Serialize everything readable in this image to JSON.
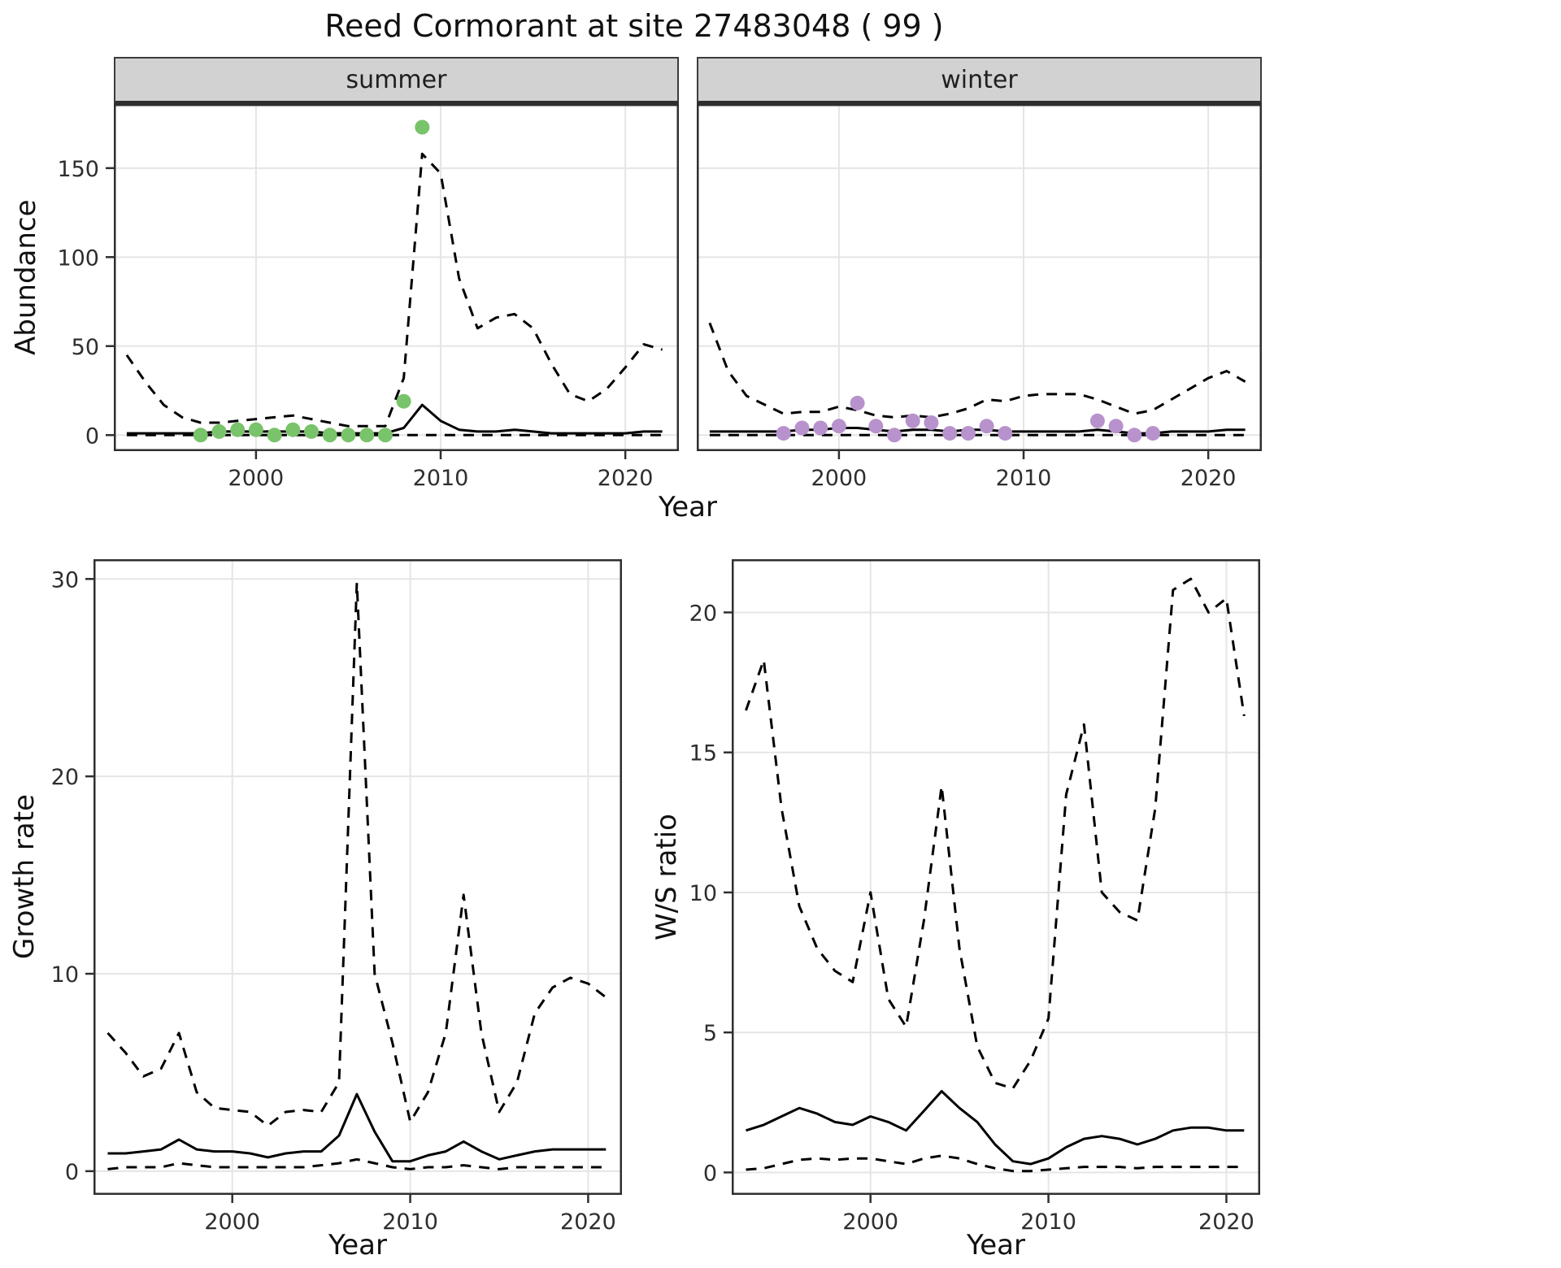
{
  "title": "Reed Cormorant at site 27483048 ( 99 )",
  "colors": {
    "summer_points": "#79c36a",
    "winter_points": "#b892cc",
    "line": "#000000",
    "grid": "#e5e5e5",
    "strip_bg": "#d2d2d2"
  },
  "chart_data": [
    {
      "type": "line",
      "facet_label": "summer",
      "xlabel": "Year",
      "ylabel": "Abundance",
      "xlim": [
        1992.3,
        2022.9
      ],
      "ylim": [
        -9,
        186
      ],
      "xticks": [
        2000,
        2010,
        2020
      ],
      "yticks": [
        0,
        50,
        100,
        150
      ],
      "x": [
        1993,
        1994,
        1995,
        1996,
        1997,
        1998,
        1999,
        2000,
        2001,
        2002,
        2003,
        2004,
        2005,
        2006,
        2007,
        2008,
        2009,
        2010,
        2011,
        2012,
        2013,
        2014,
        2015,
        2016,
        2017,
        2018,
        2019,
        2020,
        2021,
        2022
      ],
      "series": [
        {
          "name": "median",
          "style": "solid",
          "values": [
            1,
            1,
            1,
            1,
            1,
            2,
            2,
            2,
            2,
            2,
            2,
            1,
            1,
            1,
            1,
            4,
            17,
            8,
            3,
            2,
            2,
            3,
            2,
            1,
            1,
            1,
            1,
            1,
            2,
            2
          ]
        },
        {
          "name": "upper_ci",
          "style": "dashed",
          "values": [
            45,
            30,
            17,
            10,
            7,
            7,
            8,
            9,
            10,
            11,
            9,
            7,
            5,
            5,
            5,
            32,
            158,
            147,
            88,
            60,
            66,
            68,
            60,
            40,
            23,
            19,
            26,
            38,
            51,
            48
          ]
        },
        {
          "name": "lower_ci",
          "style": "dashed",
          "values": [
            0,
            0,
            0,
            0,
            0,
            0,
            0,
            0,
            0,
            0,
            0,
            0,
            0,
            0,
            0,
            0,
            0,
            0,
            0,
            0,
            0,
            0,
            0,
            0,
            0,
            0,
            0,
            0,
            0,
            0
          ]
        }
      ],
      "points": {
        "name": "observed-counts-summer",
        "color": "#79c36a",
        "x": [
          1997,
          1998,
          1999,
          2000,
          2001,
          2002,
          2003,
          2004,
          2005,
          2006,
          2007,
          2008,
          2009
        ],
        "y": [
          0,
          2,
          3,
          3,
          0,
          3,
          2,
          0,
          0,
          0,
          0,
          19,
          173
        ]
      }
    },
    {
      "type": "line",
      "facet_label": "winter",
      "xlabel": "Year",
      "ylabel": "Abundance",
      "xlim": [
        1992.3,
        2022.9
      ],
      "ylim": [
        -9,
        186
      ],
      "xticks": [
        2000,
        2010,
        2020
      ],
      "yticks": [
        0,
        50,
        100,
        150
      ],
      "x": [
        1993,
        1994,
        1995,
        1996,
        1997,
        1998,
        1999,
        2000,
        2001,
        2002,
        2003,
        2004,
        2005,
        2006,
        2007,
        2008,
        2009,
        2010,
        2011,
        2012,
        2013,
        2014,
        2015,
        2016,
        2017,
        2018,
        2019,
        2020,
        2021,
        2022
      ],
      "series": [
        {
          "name": "median",
          "style": "solid",
          "values": [
            2,
            2,
            2,
            2,
            2,
            3,
            3,
            4,
            4,
            3,
            2,
            3,
            3,
            2,
            3,
            3,
            2,
            2,
            2,
            2,
            2,
            3,
            2,
            1,
            1,
            2,
            2,
            2,
            3,
            3
          ]
        },
        {
          "name": "upper_ci",
          "style": "dashed",
          "values": [
            63,
            36,
            22,
            17,
            12,
            13,
            13,
            16,
            14,
            11,
            10,
            11,
            10,
            12,
            15,
            20,
            19,
            22,
            23,
            23,
            23,
            20,
            16,
            12,
            14,
            20,
            26,
            32,
            36,
            30
          ]
        },
        {
          "name": "lower_ci",
          "style": "dashed",
          "values": [
            0,
            0,
            0,
            0,
            0,
            0,
            0,
            0,
            0,
            0,
            0,
            0,
            0,
            0,
            0,
            0,
            0,
            0,
            0,
            0,
            0,
            0,
            0,
            0,
            0,
            0,
            0,
            0,
            0,
            0
          ]
        }
      ],
      "points": {
        "name": "observed-counts-winter",
        "color": "#b892cc",
        "x": [
          1997,
          1998,
          1999,
          2000,
          2001,
          2002,
          2003,
          2004,
          2005,
          2006,
          2007,
          2008,
          2009,
          2014,
          2015,
          2016,
          2017
        ],
        "y": [
          1,
          4,
          4,
          5,
          18,
          5,
          0,
          8,
          7,
          1,
          1,
          5,
          1,
          8,
          5,
          0,
          1
        ]
      }
    },
    {
      "type": "line",
      "facet_label": null,
      "xlabel": "Year",
      "ylabel": "Growth rate",
      "xlim": [
        1992.2,
        2021.9
      ],
      "ylim": [
        -1.2,
        31
      ],
      "xticks": [
        2000,
        2010,
        2020
      ],
      "yticks": [
        0,
        10,
        20,
        30
      ],
      "x": [
        1993,
        1994,
        1995,
        1996,
        1997,
        1998,
        1999,
        2000,
        2001,
        2002,
        2003,
        2004,
        2005,
        2006,
        2007,
        2008,
        2009,
        2010,
        2011,
        2012,
        2013,
        2014,
        2015,
        2016,
        2017,
        2018,
        2019,
        2020,
        2021
      ],
      "series": [
        {
          "name": "median",
          "style": "solid",
          "values": [
            0.9,
            0.9,
            1.0,
            1.1,
            1.6,
            1.1,
            1.0,
            1.0,
            0.9,
            0.7,
            0.9,
            1.0,
            1.0,
            1.8,
            3.9,
            2.0,
            0.5,
            0.5,
            0.8,
            1.0,
            1.5,
            1.0,
            0.6,
            0.8,
            1.0,
            1.1,
            1.1,
            1.1,
            1.1
          ]
        },
        {
          "name": "upper_ci",
          "style": "dashed",
          "values": [
            7.0,
            6.0,
            4.8,
            5.2,
            7.0,
            4.0,
            3.2,
            3.1,
            3.0,
            2.3,
            3.0,
            3.1,
            3.0,
            4.5,
            29.8,
            10.0,
            6.5,
            2.5,
            4.0,
            7.0,
            14.0,
            7.0,
            3.0,
            4.5,
            8.0,
            9.3,
            9.8,
            9.5,
            8.8
          ]
        },
        {
          "name": "lower_ci",
          "style": "dashed",
          "values": [
            0.1,
            0.2,
            0.2,
            0.2,
            0.4,
            0.3,
            0.2,
            0.2,
            0.2,
            0.2,
            0.2,
            0.2,
            0.3,
            0.4,
            0.6,
            0.4,
            0.2,
            0.1,
            0.2,
            0.2,
            0.3,
            0.2,
            0.1,
            0.2,
            0.2,
            0.2,
            0.2,
            0.2,
            0.2
          ]
        }
      ]
    },
    {
      "type": "line",
      "facet_label": null,
      "xlabel": "Year",
      "ylabel": "W/S ratio",
      "xlim": [
        1992.2,
        2021.9
      ],
      "ylim": [
        -0.8,
        21.9
      ],
      "xticks": [
        2000,
        2010,
        2020
      ],
      "yticks": [
        0,
        5,
        10,
        15,
        20
      ],
      "x": [
        1993,
        1994,
        1995,
        1996,
        1997,
        1998,
        1999,
        2000,
        2001,
        2002,
        2003,
        2004,
        2005,
        2006,
        2007,
        2008,
        2009,
        2010,
        2011,
        2012,
        2013,
        2014,
        2015,
        2016,
        2017,
        2018,
        2019,
        2020,
        2021
      ],
      "series": [
        {
          "name": "median",
          "style": "solid",
          "values": [
            1.5,
            1.7,
            2.0,
            2.3,
            2.1,
            1.8,
            1.7,
            2.0,
            1.8,
            1.5,
            2.2,
            2.9,
            2.3,
            1.8,
            1.0,
            0.4,
            0.3,
            0.5,
            0.9,
            1.2,
            1.3,
            1.2,
            1.0,
            1.2,
            1.5,
            1.6,
            1.6,
            1.5,
            1.5
          ]
        },
        {
          "name": "upper_ci",
          "style": "dashed",
          "values": [
            16.5,
            18.3,
            13.0,
            9.5,
            8.0,
            7.2,
            6.8,
            10.0,
            6.2,
            5.2,
            9.0,
            13.8,
            8.0,
            4.5,
            3.2,
            3.0,
            4.0,
            5.5,
            13.5,
            16.0,
            10.0,
            9.3,
            9.0,
            13.0,
            20.8,
            21.2,
            20.0,
            20.5,
            16.3
          ]
        },
        {
          "name": "lower_ci",
          "style": "dashed",
          "values": [
            0.1,
            0.15,
            0.3,
            0.45,
            0.5,
            0.45,
            0.5,
            0.5,
            0.4,
            0.3,
            0.5,
            0.6,
            0.5,
            0.3,
            0.15,
            0.05,
            0.05,
            0.1,
            0.15,
            0.2,
            0.2,
            0.2,
            0.15,
            0.2,
            0.2,
            0.2,
            0.2,
            0.2,
            0.2
          ]
        }
      ]
    }
  ]
}
